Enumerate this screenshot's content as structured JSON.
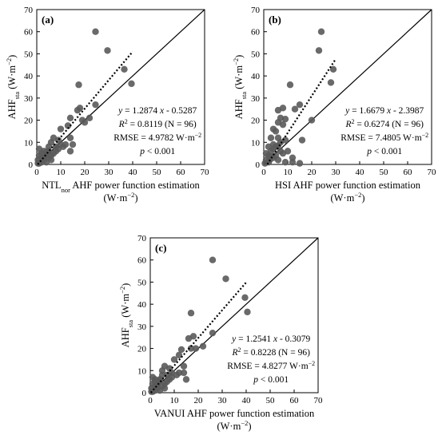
{
  "chart_data": [
    {
      "type": "scatter",
      "panel_label": "(a)",
      "ylabel_main": "AHF",
      "ylabel_sub": "sta",
      "ylabel_unit": "(W·m",
      "xlabel_main": "NTL",
      "xlabel_sub": "nor",
      "xlabel_rest": " AHF power function estimation",
      "xlabel_unit": "(W·m",
      "unit_sup": "−2",
      "unit_close": ")",
      "xlim": [
        0,
        70
      ],
      "ylim": [
        0,
        70
      ],
      "xticks": [
        "0",
        "10",
        "20",
        "30",
        "40",
        "50",
        "60",
        "70"
      ],
      "yticks": [
        "0",
        "10",
        "20",
        "30",
        "40",
        "50",
        "60",
        "70"
      ],
      "grid": false,
      "one_to_one_line": true,
      "fit": {
        "slope": 1.2874,
        "intercept": -0.5287,
        "x_range": [
          0,
          40
        ]
      },
      "annotations": {
        "eq_y": "y",
        "eq_mid": " = 1.2874 ",
        "eq_x": "x",
        "eq_rest": " - 0.5287",
        "r2_r": "R",
        "r2_sup": "2",
        "r2_rest": " = 0.8119 (N = 96)",
        "rmse": "RMSE = 4.9782 W·m",
        "rmse_sup": "−2",
        "p_p": "p",
        "p_rest": " < 0.001"
      },
      "points": [
        [
          24.5,
          60
        ],
        [
          29.5,
          51.5
        ],
        [
          36.5,
          43
        ],
        [
          39.5,
          36.5
        ],
        [
          17.5,
          36
        ],
        [
          18,
          25.5
        ],
        [
          17,
          24.5
        ],
        [
          24.5,
          27
        ],
        [
          22,
          21
        ],
        [
          19,
          20
        ],
        [
          20,
          19
        ],
        [
          14,
          21
        ],
        [
          13,
          17.5
        ],
        [
          10,
          16
        ],
        [
          14,
          12
        ],
        [
          12,
          9
        ],
        [
          15,
          9
        ],
        [
          14,
          6
        ],
        [
          11,
          8
        ],
        [
          9,
          11
        ],
        [
          10,
          9
        ],
        [
          8,
          8
        ],
        [
          7,
          12
        ],
        [
          6,
          10
        ],
        [
          5,
          6
        ],
        [
          4,
          4
        ],
        [
          3,
          6
        ],
        [
          2,
          3
        ],
        [
          1,
          7
        ],
        [
          0.5,
          2
        ],
        [
          1,
          0.5
        ],
        [
          2,
          1
        ],
        [
          3,
          2
        ],
        [
          4,
          1
        ],
        [
          5,
          3
        ],
        [
          6,
          4
        ],
        [
          7,
          5
        ],
        [
          8,
          6
        ],
        [
          9,
          7
        ],
        [
          2,
          5
        ],
        [
          3,
          3
        ],
        [
          1,
          4
        ],
        [
          6,
          2
        ],
        [
          0.5,
          0.5
        ],
        [
          4,
          5.5
        ],
        [
          5,
          8
        ]
      ]
    },
    {
      "type": "scatter",
      "panel_label": "(b)",
      "ylabel_main": "AHF",
      "ylabel_sub": "sta",
      "ylabel_unit": "(W·m",
      "xlabel_main": "HSI AHF power function estimation",
      "xlabel_sub": "",
      "xlabel_rest": "",
      "xlabel_unit": "(W·m",
      "unit_sup": "−2",
      "unit_close": ")",
      "xlim": [
        0,
        70
      ],
      "ylim": [
        0,
        70
      ],
      "xticks": [
        "0",
        "10",
        "20",
        "30",
        "40",
        "50",
        "60",
        "70"
      ],
      "yticks": [
        "0",
        "10",
        "20",
        "30",
        "40",
        "50",
        "60",
        "70"
      ],
      "grid": false,
      "one_to_one_line": true,
      "fit": {
        "slope": 1.6679,
        "intercept": -2.3987,
        "x_range": [
          1.5,
          30
        ]
      },
      "annotations": {
        "eq_y": "y",
        "eq_mid": " = 1.6679 ",
        "eq_x": "x",
        "eq_rest": " - 2.3987",
        "r2_r": "R",
        "r2_sup": "2",
        "r2_rest": " = 0.6274 (N = 96)",
        "rmse": "RMSE = 7.4805 W·m",
        "rmse_sup": "−2",
        "p_p": "p",
        "p_rest": " < 0.001"
      },
      "points": [
        [
          24,
          60
        ],
        [
          23,
          51.5
        ],
        [
          29,
          43
        ],
        [
          28,
          37
        ],
        [
          11,
          36
        ],
        [
          15,
          27
        ],
        [
          13,
          25
        ],
        [
          8,
          25.5
        ],
        [
          6,
          24.5
        ],
        [
          7,
          21
        ],
        [
          9,
          20.5
        ],
        [
          20,
          20
        ],
        [
          6,
          19
        ],
        [
          8,
          18
        ],
        [
          4,
          16
        ],
        [
          5,
          15
        ],
        [
          3,
          12
        ],
        [
          6,
          12
        ],
        [
          9,
          11
        ],
        [
          7,
          10
        ],
        [
          4,
          9
        ],
        [
          2,
          8
        ],
        [
          5,
          8
        ],
        [
          3,
          6
        ],
        [
          10,
          6
        ],
        [
          8,
          5
        ],
        [
          2,
          4
        ],
        [
          4,
          3
        ],
        [
          1,
          2
        ],
        [
          0.5,
          0.5
        ],
        [
          2,
          1
        ],
        [
          6,
          2
        ],
        [
          9,
          1
        ],
        [
          12,
          1
        ],
        [
          15,
          0.5
        ],
        [
          3,
          3.5
        ],
        [
          5,
          4
        ],
        [
          7,
          6
        ],
        [
          1,
          5
        ],
        [
          2.5,
          2
        ],
        [
          4,
          7
        ],
        [
          6,
          8.5
        ],
        [
          12,
          3
        ],
        [
          16,
          11
        ]
      ]
    },
    {
      "type": "scatter",
      "panel_label": "(c)",
      "ylabel_main": "AHF",
      "ylabel_sub": "sta",
      "ylabel_unit": "(W·m",
      "xlabel_main": "VANUI AHF power function estimation",
      "xlabel_sub": "",
      "xlabel_rest": "",
      "xlabel_unit": "(W·m",
      "unit_sup": "−2",
      "unit_close": ")",
      "xlim": [
        0,
        70
      ],
      "ylim": [
        0,
        70
      ],
      "xticks": [
        "0",
        "10",
        "20",
        "30",
        "40",
        "50",
        "60",
        "70"
      ],
      "yticks": [
        "0",
        "10",
        "20",
        "30",
        "40",
        "50",
        "60",
        "70"
      ],
      "grid": false,
      "one_to_one_line": true,
      "fit": {
        "slope": 1.2541,
        "intercept": -0.3079,
        "x_range": [
          0,
          40
        ]
      },
      "annotations": {
        "eq_y": "y",
        "eq_mid": " = 1.2541 ",
        "eq_x": "x",
        "eq_rest": " - 0.3079",
        "r2_r": "R",
        "r2_sup": "2",
        "r2_rest": " = 0.8228 (N = 96)",
        "rmse": "RMSE = 4.8277 W·m",
        "rmse_sup": "−2",
        "p_p": "p",
        "p_rest": " < 0.001"
      },
      "points": [
        [
          26,
          60
        ],
        [
          31.5,
          51.5
        ],
        [
          39.5,
          43
        ],
        [
          40.5,
          36.5
        ],
        [
          17,
          36
        ],
        [
          18,
          25.5
        ],
        [
          16,
          24.5
        ],
        [
          26,
          27
        ],
        [
          22,
          21
        ],
        [
          17,
          20
        ],
        [
          19,
          20
        ],
        [
          13,
          19.5
        ],
        [
          12,
          17
        ],
        [
          10,
          15
        ],
        [
          14,
          12
        ],
        [
          12,
          9
        ],
        [
          14,
          9
        ],
        [
          15,
          6
        ],
        [
          11,
          8
        ],
        [
          8,
          11
        ],
        [
          9,
          9
        ],
        [
          7,
          8
        ],
        [
          6,
          12
        ],
        [
          5,
          10
        ],
        [
          4,
          6
        ],
        [
          3,
          4
        ],
        [
          2,
          6
        ],
        [
          2,
          3
        ],
        [
          1,
          7
        ],
        [
          0.5,
          2
        ],
        [
          1,
          0.5
        ],
        [
          2,
          1
        ],
        [
          3,
          2
        ],
        [
          4,
          1
        ],
        [
          5,
          3
        ],
        [
          6,
          4
        ],
        [
          7,
          5
        ],
        [
          8,
          6
        ],
        [
          9,
          7
        ],
        [
          2,
          5
        ],
        [
          3,
          3
        ],
        [
          1,
          4
        ],
        [
          6,
          2
        ],
        [
          0.5,
          0.5
        ],
        [
          4,
          5.5
        ],
        [
          5,
          8
        ]
      ]
    }
  ]
}
